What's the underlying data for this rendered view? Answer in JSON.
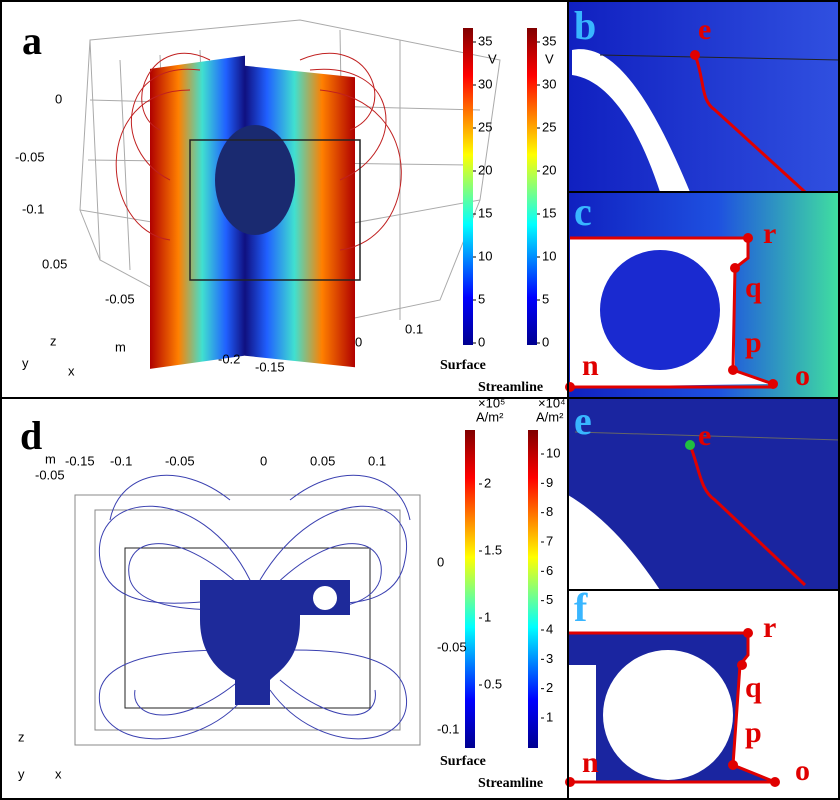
{
  "panels": [
    {
      "label": "a",
      "axis_ticks": [
        "0",
        "-0.05",
        "-0.1",
        "0.05",
        "-0.05",
        "-0.2",
        "-0.15",
        "0",
        "0.1"
      ],
      "axis_unit": "m",
      "axes": [
        "z",
        "y",
        "x"
      ],
      "colorbars": [
        {
          "unit": "V",
          "ticks": [
            "35",
            "30",
            "25",
            "20",
            "15",
            "10",
            "5",
            "0"
          ]
        },
        {
          "unit": "V",
          "ticks": [
            "35",
            "30",
            "25",
            "20",
            "15",
            "10",
            "5",
            "0"
          ]
        }
      ],
      "colorbar_captions": [
        "Surface",
        "Streamline"
      ]
    },
    {
      "label": "b",
      "points": [
        "e"
      ]
    },
    {
      "label": "c",
      "points": [
        "r",
        "q",
        "p",
        "n",
        "o"
      ]
    },
    {
      "label": "d",
      "axis_ticks": [
        "-0.15",
        "-0.1",
        "-0.05",
        "0",
        "0.05",
        "0.1",
        "-0.05",
        "0",
        "-0.05",
        "-0.1"
      ],
      "axis_unit": "m",
      "axes": [
        "z",
        "y",
        "x"
      ],
      "colorbars": [
        {
          "multiplier": "×10⁵",
          "unit": "A/m²",
          "ticks": [
            "2",
            "1.5",
            "1",
            "0.5"
          ]
        },
        {
          "multiplier": "×10⁴",
          "unit": "A/m²",
          "ticks": [
            "10",
            "9",
            "8",
            "7",
            "6",
            "5",
            "4",
            "3",
            "2",
            "1"
          ]
        }
      ],
      "colorbar_captions": [
        "Surface",
        "Streamline"
      ]
    },
    {
      "label": "e",
      "points": [
        "e"
      ]
    },
    {
      "label": "f",
      "points": [
        "r",
        "q",
        "p",
        "n",
        "o"
      ]
    }
  ]
}
